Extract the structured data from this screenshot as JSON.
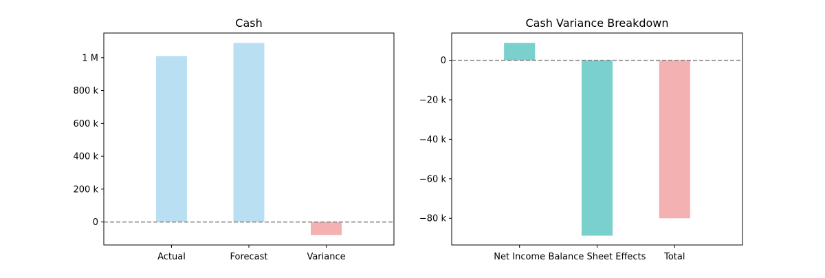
{
  "chart_data": [
    {
      "type": "bar",
      "title": "Cash",
      "xlabel": "",
      "ylabel": "",
      "categories": [
        "Actual",
        "Forecast",
        "Variance"
      ],
      "values": [
        1010000,
        1090000,
        -80000
      ],
      "bar_colors": [
        "#b8e0f2",
        "#b8e0f2",
        "#f4b1b1"
      ],
      "ylim": [
        -140000,
        1150000
      ],
      "yticks": [
        0,
        200000,
        400000,
        600000,
        800000,
        1000000
      ],
      "ytick_labels": [
        "0",
        "200 k",
        "400 k",
        "600 k",
        "800 k",
        "1 M"
      ],
      "zero_line": true,
      "grid": false
    },
    {
      "type": "bar",
      "title": "Cash Variance Breakdown",
      "xlabel": "",
      "ylabel": "",
      "categories": [
        "Net Income",
        "Balance Sheet Effects",
        "Total"
      ],
      "values": [
        8800,
        -88800,
        -80000
      ],
      "bar_colors": [
        "#7ad0cc",
        "#7ad0cc",
        "#f4b1b1"
      ],
      "ylim": [
        -93500,
        13800
      ],
      "yticks": [
        0,
        -20000,
        -40000,
        -60000,
        -80000
      ],
      "ytick_labels": [
        "0",
        "−20 k",
        "−40 k",
        "−60 k",
        "−80 k"
      ],
      "zero_line": true,
      "grid": false
    }
  ],
  "colors": {
    "zero_line": "#808080",
    "axis": "#000000"
  }
}
